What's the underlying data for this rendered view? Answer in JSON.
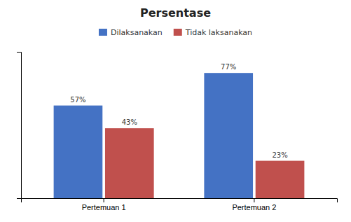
{
  "chart_data": {
    "type": "bar",
    "title": "Persentase",
    "categories": [
      "Pertemuan 1",
      "Pertemuan 2"
    ],
    "series": [
      {
        "name": "Dilaksanakan",
        "color": "#4472C4",
        "values": [
          57,
          77
        ],
        "value_labels": [
          "57%",
          "77%"
        ]
      },
      {
        "name": "Tidak laksanakan",
        "color": "#C0504D",
        "values": [
          43,
          23
        ],
        "value_labels": [
          "43%",
          "23%"
        ]
      }
    ],
    "ylim": [
      0,
      90
    ],
    "yticks": [],
    "grid": false,
    "legend": "top",
    "data_labels": true,
    "tick_labels": "x"
  }
}
